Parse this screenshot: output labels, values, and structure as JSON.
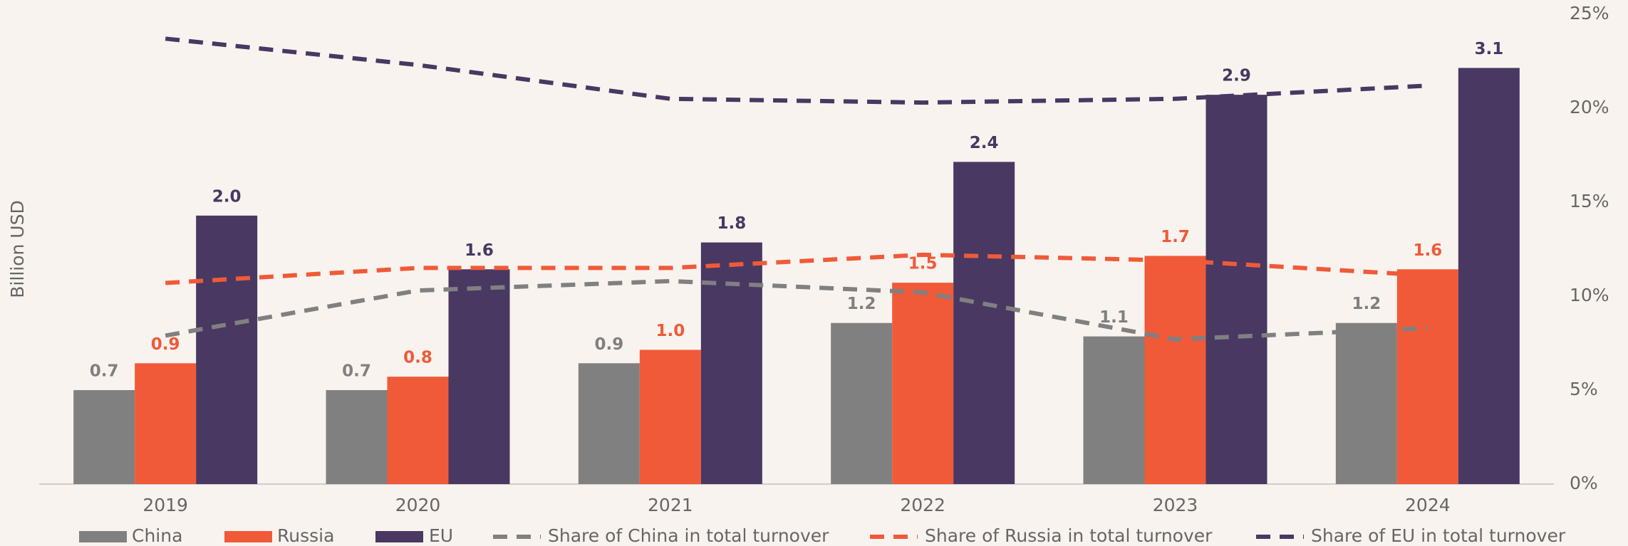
{
  "chart_data": {
    "type": "bar",
    "y_label": "Billion USD",
    "categories": [
      "2019",
      "2020",
      "2021",
      "2022",
      "2023",
      "2024"
    ],
    "ylim": [
      0,
      3.5
    ],
    "y2lim": [
      0,
      25
    ],
    "y2ticks": [
      {
        "value": 0,
        "label": "0%"
      },
      {
        "value": 5,
        "label": "5%"
      },
      {
        "value": 10,
        "label": "10%"
      },
      {
        "value": 15,
        "label": "15%"
      },
      {
        "value": 20,
        "label": "20%"
      },
      {
        "value": 25,
        "label": "25%"
      }
    ],
    "series": [
      {
        "name": "China",
        "type": "bar",
        "color": "#808080",
        "values": [
          0.7,
          0.7,
          0.9,
          1.2,
          1.1,
          1.2
        ],
        "value_labels": [
          "0.7",
          "0.7",
          "0.9",
          "1.2",
          "1.1",
          "1.2"
        ]
      },
      {
        "name": "Russia",
        "type": "bar",
        "color": "#f05a38",
        "values": [
          0.9,
          0.8,
          1.0,
          1.5,
          1.7,
          1.6
        ],
        "value_labels": [
          "0.9",
          "0.8",
          "1.0",
          "1.5",
          "1.7",
          "1.6"
        ]
      },
      {
        "name": "EU",
        "type": "bar",
        "color": "#483862",
        "values": [
          2.0,
          1.6,
          1.8,
          2.4,
          2.9,
          3.1
        ],
        "value_labels": [
          "2.0",
          "1.6",
          "1.8",
          "2.4",
          "2.9",
          "3.1"
        ]
      },
      {
        "name": "Share of China in total turnover",
        "type": "line",
        "axis": "y2",
        "color": "#808080",
        "values": [
          7.9,
          10.3,
          10.8,
          10.2,
          7.7,
          8.3
        ]
      },
      {
        "name": "Share of Russia in total turnover",
        "type": "line",
        "axis": "y2",
        "color": "#f05a38",
        "values": [
          10.7,
          11.5,
          11.5,
          12.2,
          11.9,
          11.1
        ]
      },
      {
        "name": "Share of EU in total turnover",
        "type": "line",
        "axis": "y2",
        "color": "#483862",
        "values": [
          23.7,
          22.3,
          20.5,
          20.3,
          20.5,
          21.2
        ]
      }
    ]
  }
}
